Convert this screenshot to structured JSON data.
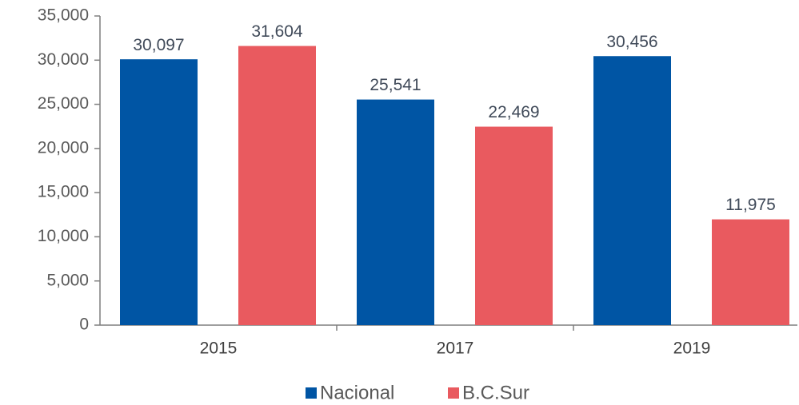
{
  "chart_data": {
    "type": "bar",
    "categories": [
      "2015",
      "2017",
      "2019"
    ],
    "series": [
      {
        "name": "Nacional",
        "color": "#0055a4",
        "values": [
          30097,
          25541,
          30456
        ],
        "value_labels": [
          "30,097",
          "25,541",
          "30,456"
        ]
      },
      {
        "name": "B.C.Sur",
        "color": "#e95a5f",
        "values": [
          31604,
          22469,
          11975
        ],
        "value_labels": [
          "31,604",
          "22,469",
          "11,975"
        ]
      }
    ],
    "ylim": [
      0,
      35000
    ],
    "yticks": [
      0,
      {
        "value": 5000,
        "label": "5,000"
      },
      {
        "value": 10000,
        "label": "10,000"
      },
      {
        "value": 15000,
        "label": "15,000"
      },
      {
        "value": 20000,
        "label": "20,000"
      },
      {
        "value": 25000,
        "label": "25,000"
      },
      {
        "value": 30000,
        "label": "30,000"
      },
      {
        "value": 35000,
        "label": "35,000"
      }
    ],
    "grid": false,
    "legend": "bottom"
  }
}
